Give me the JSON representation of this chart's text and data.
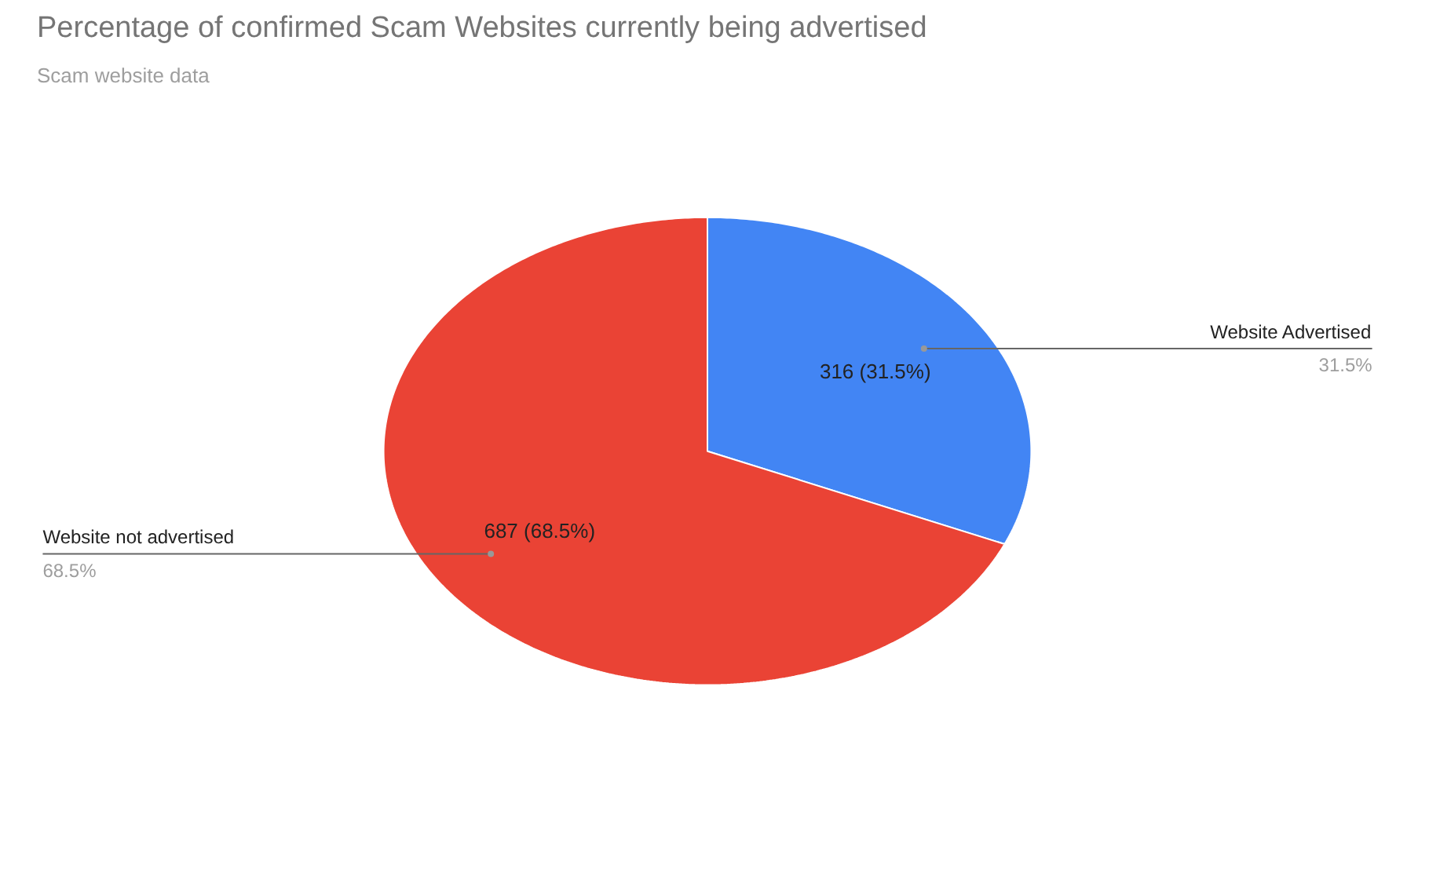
{
  "chart_data": {
    "type": "pie",
    "title": "Percentage of confirmed Scam Websites currently being advertised",
    "subtitle": "Scam website data",
    "categories": [
      "Website Advertised",
      "Website not advertised"
    ],
    "values": [
      316,
      687
    ],
    "colors": [
      "#4285f4",
      "#ea4335"
    ],
    "value_labels": [
      "316 (31.5%)",
      "687 (68.5%)"
    ],
    "annotations": [
      "31.5%",
      "68.5%"
    ]
  }
}
